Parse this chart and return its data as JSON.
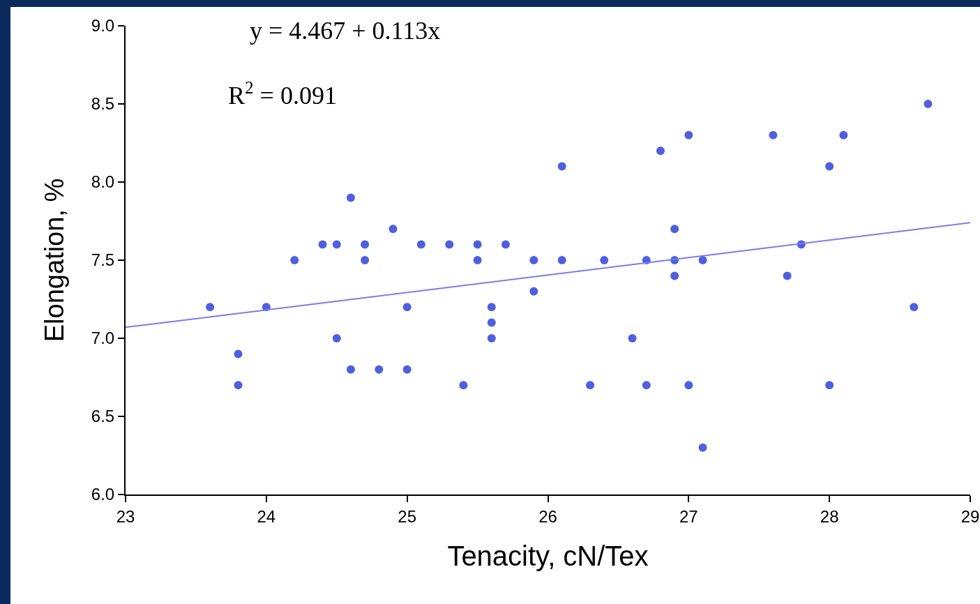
{
  "chart_data": {
    "type": "scatter",
    "xlabel": "Tenacity, cN/Tex",
    "ylabel": "Elongation, %",
    "annotations": [
      "y = 4.467 + 0.113x",
      "R$^{2}$ = 0.091"
    ],
    "xlim": [
      23,
      29
    ],
    "xticks": [
      23,
      24,
      25,
      26,
      27,
      28,
      29
    ],
    "ylim": [
      6.0,
      9.0
    ],
    "yticks": [
      {
        "value": 6,
        "label": "6.0"
      },
      {
        "value": 6.5,
        "label": "6.5"
      },
      {
        "value": 7,
        "label": "7.0"
      },
      {
        "value": 7.5,
        "label": "7.5"
      },
      {
        "value": 8,
        "label": "8.0"
      },
      {
        "value": 8.5,
        "label": "8.5"
      },
      {
        "value": 9,
        "label": "9.0"
      }
    ],
    "grid": false,
    "series": [
      {
        "marker": "circle",
        "color": "#4f5fe0",
        "x": [
          23.6,
          23.8,
          23.8,
          24.0,
          24.2,
          24.4,
          24.5,
          24.5,
          24.6,
          24.6,
          24.7,
          24.7,
          24.8,
          24.9,
          25.0,
          25.0,
          25.1,
          25.3,
          25.4,
          25.5,
          25.5,
          25.6,
          25.6,
          25.6,
          25.7,
          25.9,
          25.9,
          26.1,
          26.1,
          26.3,
          26.4,
          26.6,
          26.7,
          26.7,
          26.8,
          26.9,
          26.9,
          26.9,
          27.0,
          27.0,
          27.1,
          27.1,
          27.6,
          27.7,
          27.8,
          28.0,
          28.0,
          28.1,
          28.6,
          28.7
        ],
        "values": [
          7.2,
          6.9,
          6.7,
          7.2,
          7.5,
          7.6,
          7.6,
          7.0,
          7.9,
          6.8,
          7.6,
          7.5,
          6.8,
          7.7,
          7.2,
          6.8,
          7.6,
          7.6,
          6.7,
          7.6,
          7.5,
          7.2,
          7.1,
          7.0,
          7.6,
          7.5,
          7.3,
          8.1,
          7.5,
          6.7,
          7.5,
          7.0,
          7.5,
          6.7,
          8.2,
          7.7,
          7.5,
          7.4,
          8.3,
          6.7,
          7.5,
          6.3,
          8.3,
          7.4,
          7.6,
          8.1,
          6.7,
          8.3,
          7.2,
          8.5
        ]
      },
      {
        "type": "line",
        "marker": "none",
        "color": "#7b7bef",
        "line_style": "solid",
        "x": [
          23,
          29
        ],
        "values": [
          7.07,
          7.74
        ]
      }
    ]
  }
}
